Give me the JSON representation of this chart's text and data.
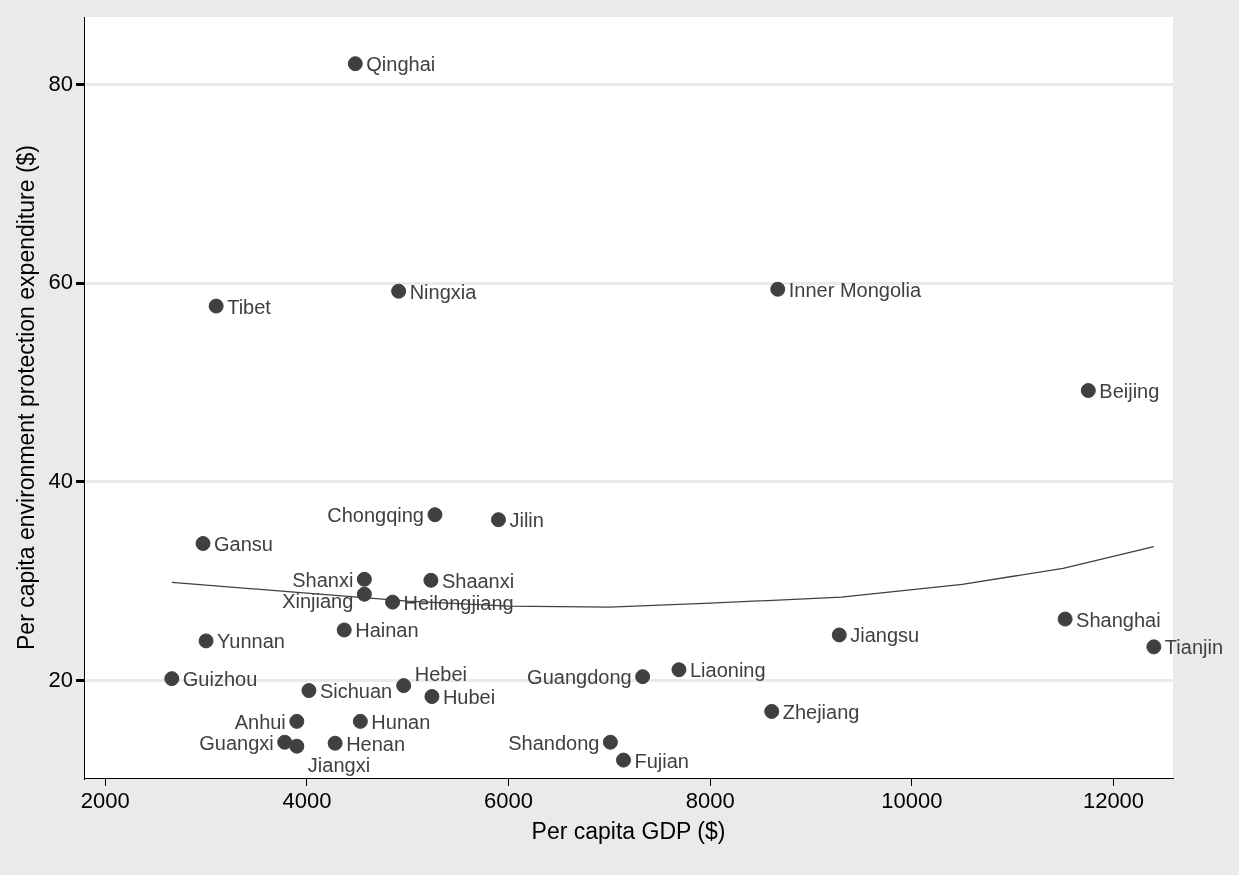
{
  "chart_data": {
    "type": "scatter",
    "xlabel": "Per capita GDP ($)",
    "ylabel": "Per capita environment protection expenditure ($)",
    "xlim": [
      1790,
      12590
    ],
    "xticks": [
      2000,
      4000,
      6000,
      8000,
      10000,
      12000
    ],
    "ylim": [
      10.2,
      86.8
    ],
    "yticks": [
      20,
      40,
      60,
      80
    ],
    "grid": "y",
    "legend": false,
    "marker": "circle",
    "series": [
      {
        "type": "scatter",
        "color": "#404040",
        "x": [
          4480,
          3100,
          4910,
          8670,
          11750,
          5270,
          5900,
          2970,
          4570,
          5230,
          4570,
          4850,
          4370,
          3000,
          9280,
          11520,
          12400,
          2660,
          7690,
          7330,
          4020,
          4960,
          5240,
          8610,
          3900,
          4530,
          3780,
          3900,
          4280,
          7010,
          7140
        ],
        "values": [
          82.1,
          57.7,
          59.2,
          59.4,
          49.2,
          36.7,
          36.2,
          33.8,
          30.2,
          30.1,
          28.7,
          27.9,
          25.1,
          24.0,
          24.6,
          26.2,
          23.4,
          20.2,
          21.1,
          20.4,
          19.0,
          19.5,
          18.4,
          16.9,
          15.9,
          15.9,
          13.8,
          13.4,
          13.7,
          13.8,
          12.0
        ]
      },
      {
        "type": "line",
        "color": "#404040",
        "line_style": "solid",
        "marker": "none",
        "x": [
          2660,
          4000,
          5000,
          6000,
          7000,
          8000,
          9300,
          10500,
          11500,
          12400
        ],
        "values": [
          29.9,
          28.8,
          28.0,
          27.5,
          27.4,
          27.8,
          28.4,
          29.7,
          31.3,
          33.5
        ]
      }
    ],
    "annotations": [
      {
        "text": "Qinghai",
        "x": 4480,
        "y": 82.1
      },
      {
        "text": "Tibet",
        "x": 3100,
        "y": 57.7
      },
      {
        "text": "Ningxia",
        "x": 4910,
        "y": 59.2
      },
      {
        "text": "Inner Mongolia",
        "x": 8670,
        "y": 59.4
      },
      {
        "text": "Beijing",
        "x": 11750,
        "y": 49.2
      },
      {
        "text": "Chongqing",
        "x": 5270,
        "y": 36.7
      },
      {
        "text": "Jilin",
        "x": 5900,
        "y": 36.2
      },
      {
        "text": "Gansu",
        "x": 2970,
        "y": 33.8
      },
      {
        "text": "Shanxi",
        "x": 4570,
        "y": 30.2
      },
      {
        "text": "Shaanxi",
        "x": 5230,
        "y": 30.1
      },
      {
        "text": "Xinjiang",
        "x": 4570,
        "y": 28.7
      },
      {
        "text": "Heilongjiang",
        "x": 4850,
        "y": 27.9
      },
      {
        "text": "Hainan",
        "x": 4370,
        "y": 25.1
      },
      {
        "text": "Yunnan",
        "x": 3000,
        "y": 24.0
      },
      {
        "text": "Jiangsu",
        "x": 9280,
        "y": 24.6
      },
      {
        "text": "Shanghai",
        "x": 11520,
        "y": 26.2
      },
      {
        "text": "Tianjin",
        "x": 12400,
        "y": 23.4
      },
      {
        "text": "Guizhou",
        "x": 2660,
        "y": 20.2
      },
      {
        "text": "Liaoning",
        "x": 7690,
        "y": 21.1
      },
      {
        "text": "Guangdong",
        "x": 7330,
        "y": 20.4
      },
      {
        "text": "Sichuan",
        "x": 4020,
        "y": 19.0
      },
      {
        "text": "Hebei",
        "x": 4960,
        "y": 19.5
      },
      {
        "text": "Hubei",
        "x": 5240,
        "y": 18.4
      },
      {
        "text": "Zhejiang",
        "x": 8610,
        "y": 16.9
      },
      {
        "text": "Anhui",
        "x": 3900,
        "y": 15.9
      },
      {
        "text": "Hunan",
        "x": 4530,
        "y": 15.9
      },
      {
        "text": "Guangxi",
        "x": 3780,
        "y": 13.8
      },
      {
        "text": "Jiangxi",
        "x": 3900,
        "y": 13.4
      },
      {
        "text": "Henan",
        "x": 4280,
        "y": 13.7
      },
      {
        "text": "Shandong",
        "x": 7010,
        "y": 13.8
      },
      {
        "text": "Fujian",
        "x": 7140,
        "y": 12.0
      }
    ]
  }
}
